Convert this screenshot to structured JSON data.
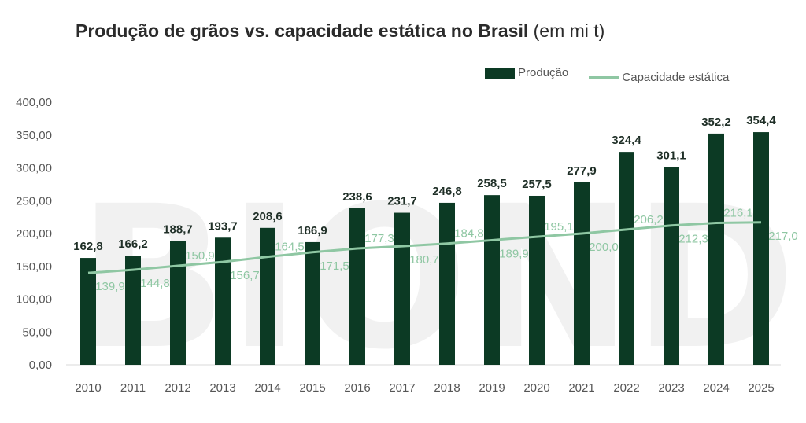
{
  "title": {
    "main": "Produção de grãos vs. capacidade estática no Brasil",
    "unit": "(em mi t)"
  },
  "legend": {
    "bar_label": "Produção",
    "line_label": "Capacidade estática",
    "position": "top-right"
  },
  "colors": {
    "bar": "#0c3a24",
    "line": "#8fc7a3",
    "watermark": "#f1f1f1",
    "axis_text": "#555555"
  },
  "watermark_text": "BIOND",
  "chart_data": {
    "type": "bar",
    "title": "Produção de grãos vs. capacidade estática no Brasil (em mi t)",
    "categories": [
      "2010",
      "2011",
      "2012",
      "2013",
      "2014",
      "2015",
      "2016",
      "2017",
      "2018",
      "2019",
      "2020",
      "2021",
      "2022",
      "2023",
      "2024",
      "2025"
    ],
    "series": [
      {
        "name": "Produção",
        "type": "bar",
        "values": [
          162.8,
          166.2,
          188.7,
          193.7,
          208.6,
          186.9,
          238.6,
          231.7,
          246.8,
          258.5,
          257.5,
          277.9,
          324.4,
          301.1,
          352.2,
          354.4
        ],
        "labels": [
          "162,8",
          "166,2",
          "188,7",
          "193,7",
          "208,6",
          "186,9",
          "238,6",
          "231,7",
          "246,8",
          "258,5",
          "257,5",
          "277,9",
          "324,4",
          "301,1",
          "352,2",
          "354,4"
        ]
      },
      {
        "name": "Capacidade estática",
        "type": "line",
        "values": [
          139.9,
          144.8,
          150.9,
          156.7,
          164.5,
          171.5,
          177.3,
          180.7,
          184.8,
          189.9,
          195.1,
          200.0,
          206.2,
          212.3,
          216.1,
          217.0
        ],
        "labels": [
          "139,9",
          "144,8",
          "150,9",
          "156,7",
          "164,5",
          "171,5",
          "177,3",
          "180,7",
          "184,8",
          "189,9",
          "195,1",
          "200,0",
          "206,2",
          "212,3",
          "216,1",
          "217,0"
        ]
      }
    ],
    "yticks": [
      "0,00",
      "50,00",
      "100,00",
      "150,00",
      "200,00",
      "250,00",
      "300,00",
      "350,00",
      "400,00"
    ],
    "ylim": [
      0,
      400
    ],
    "grid": false
  }
}
